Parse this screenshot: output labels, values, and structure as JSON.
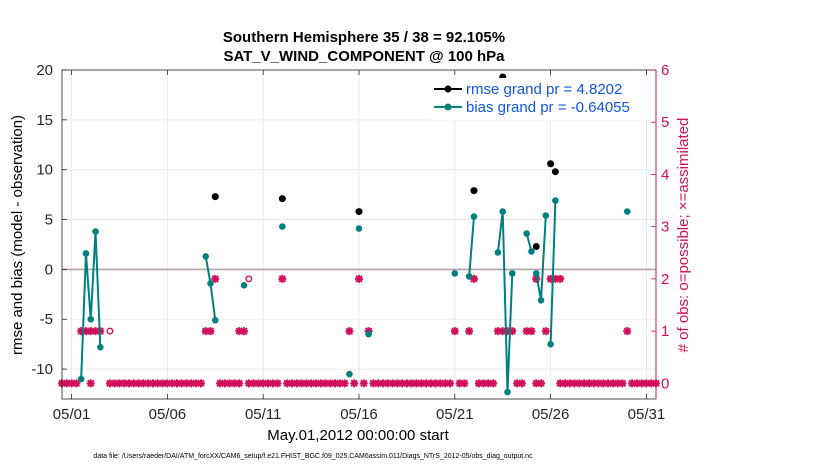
{
  "chart_data": {
    "type": "scatter",
    "title_line1": "Southern Hemisphere 35 / 38 = 92.105%",
    "title_line2": "SAT_V_WIND_COMPONENT @ 100 hPa",
    "xlabel": "May.01,2012 00:00:00 start",
    "ylabel": "rmse and bias (model - observation)",
    "ylabel_right": "# of obs: o=possible; ×=assimilated",
    "xlim": [
      0.5,
      31.5
    ],
    "ylim": [
      -13,
      20
    ],
    "ylim_right": [
      -0.3,
      6
    ],
    "x_ticks": [
      1,
      6,
      11,
      16,
      21,
      26,
      31
    ],
    "x_tick_labels": [
      "05/01",
      "05/06",
      "05/11",
      "05/16",
      "05/21",
      "05/26",
      "05/31"
    ],
    "y_ticks": [
      20,
      15,
      10,
      5,
      0,
      -5,
      -10
    ],
    "y_tick_labels": [
      "20",
      "15",
      "10",
      "5",
      "0",
      "-5",
      "-10"
    ],
    "y_right_ticks": [
      6,
      5,
      4,
      3,
      2,
      1,
      0
    ],
    "y_right_tick_labels": [
      "6",
      "5",
      "4",
      "3",
      "2",
      "1",
      "0"
    ],
    "colors": {
      "rmse": "#000000",
      "bias": "#00807f",
      "obs": "#d0105a",
      "zero_line": "#b3a3a8",
      "grid": "#e6e6e6"
    },
    "legend": [
      {
        "name": "rmse grand pr = 4.8202",
        "color": "#000000"
      },
      {
        "name": "bias grand pr = -0.64055",
        "color": "#00807f"
      }
    ],
    "legend_position": "top-right",
    "series": [
      {
        "name": "rmse",
        "points": [
          [
            8.5,
            7.3
          ],
          [
            12.0,
            7.1
          ],
          [
            16.0,
            5.8
          ],
          [
            22.0,
            7.9
          ],
          [
            23.5,
            19.3
          ],
          [
            25.25,
            2.3
          ],
          [
            26.0,
            10.6
          ],
          [
            26.25,
            9.8
          ]
        ]
      },
      {
        "name": "bias",
        "segments": [
          [
            [
              1.5,
              -11.0
            ],
            [
              1.75,
              1.6
            ],
            [
              2.0,
              -5.0
            ],
            [
              2.25,
              3.8
            ],
            [
              2.5,
              -7.8
            ]
          ],
          [
            [
              8.0,
              1.3
            ],
            [
              8.25,
              -1.4
            ],
            [
              8.5,
              -5.1
            ]
          ],
          [
            [
              10.0,
              -1.6
            ]
          ],
          [
            [
              12.0,
              4.3
            ]
          ],
          [
            [
              16.0,
              4.1
            ]
          ],
          [
            [
              16.5,
              -6.5
            ]
          ],
          [
            [
              15.5,
              -10.5
            ]
          ],
          [
            [
              21.0,
              -0.4
            ]
          ],
          [
            [
              21.75,
              -0.7
            ],
            [
              22.0,
              5.3
            ]
          ],
          [
            [
              23.25,
              1.7
            ],
            [
              23.5,
              5.8
            ],
            [
              23.75,
              -12.3
            ],
            [
              24.0,
              -0.4
            ]
          ],
          [
            [
              24.75,
              3.6
            ],
            [
              25.0,
              1.8
            ]
          ],
          [
            [
              25.25,
              -0.4
            ],
            [
              25.5,
              -3.1
            ],
            [
              25.75,
              5.4
            ]
          ],
          [
            [
              26.0,
              -7.5
            ],
            [
              26.25,
              6.9
            ]
          ],
          [
            [
              30.0,
              5.8
            ]
          ]
        ]
      },
      {
        "name": "obs_assimilated",
        "points": [
          [
            0.5,
            0
          ],
          [
            0.75,
            0
          ],
          [
            1.0,
            0
          ],
          [
            1.25,
            0
          ],
          [
            1.5,
            1
          ],
          [
            1.75,
            1
          ],
          [
            2.0,
            1
          ],
          [
            2.25,
            1
          ],
          [
            2.5,
            1
          ],
          [
            2.0,
            0
          ],
          [
            3.0,
            0
          ],
          [
            3.25,
            0
          ],
          [
            3.5,
            0
          ],
          [
            3.75,
            0
          ],
          [
            4.0,
            0
          ],
          [
            4.25,
            0
          ],
          [
            4.5,
            0
          ],
          [
            4.75,
            0
          ],
          [
            5.0,
            0
          ],
          [
            5.25,
            0
          ],
          [
            5.5,
            0
          ],
          [
            5.75,
            0
          ],
          [
            6.0,
            0
          ],
          [
            6.25,
            0
          ],
          [
            6.5,
            0
          ],
          [
            6.75,
            0
          ],
          [
            7.0,
            0
          ],
          [
            7.25,
            0
          ],
          [
            7.5,
            0
          ],
          [
            7.75,
            0
          ],
          [
            8.0,
            1
          ],
          [
            8.25,
            1
          ],
          [
            8.5,
            2
          ],
          [
            8.75,
            0
          ],
          [
            9.0,
            0
          ],
          [
            9.25,
            0
          ],
          [
            9.5,
            0
          ],
          [
            9.75,
            0
          ],
          [
            9.75,
            1
          ],
          [
            10.0,
            1
          ],
          [
            10.25,
            0
          ],
          [
            10.5,
            0
          ],
          [
            10.75,
            0
          ],
          [
            11.0,
            0
          ],
          [
            11.25,
            0
          ],
          [
            11.5,
            0
          ],
          [
            11.75,
            0
          ],
          [
            12.0,
            2
          ],
          [
            12.25,
            0
          ],
          [
            12.5,
            0
          ],
          [
            12.75,
            0
          ],
          [
            13.0,
            0
          ],
          [
            13.25,
            0
          ],
          [
            13.5,
            0
          ],
          [
            13.75,
            0
          ],
          [
            14.0,
            0
          ],
          [
            14.25,
            0
          ],
          [
            14.5,
            0
          ],
          [
            14.75,
            0
          ],
          [
            15.0,
            0
          ],
          [
            15.25,
            0
          ],
          [
            15.5,
            1
          ],
          [
            15.75,
            0
          ],
          [
            16.0,
            2
          ],
          [
            16.25,
            0
          ],
          [
            16.5,
            1
          ],
          [
            16.75,
            0
          ],
          [
            17.0,
            0
          ],
          [
            17.25,
            0
          ],
          [
            17.5,
            0
          ],
          [
            17.75,
            0
          ],
          [
            18.0,
            0
          ],
          [
            18.25,
            0
          ],
          [
            18.5,
            0
          ],
          [
            18.75,
            0
          ],
          [
            19.0,
            0
          ],
          [
            19.25,
            0
          ],
          [
            19.5,
            0
          ],
          [
            19.75,
            0
          ],
          [
            20.0,
            0
          ],
          [
            20.25,
            0
          ],
          [
            20.5,
            0
          ],
          [
            20.75,
            0
          ],
          [
            21.0,
            1
          ],
          [
            21.25,
            0
          ],
          [
            21.5,
            0
          ],
          [
            21.75,
            1
          ],
          [
            22.0,
            2
          ],
          [
            22.25,
            0
          ],
          [
            22.5,
            0
          ],
          [
            22.75,
            0
          ],
          [
            23.0,
            0
          ],
          [
            23.25,
            1
          ],
          [
            23.5,
            1
          ],
          [
            23.75,
            1
          ],
          [
            24.0,
            1
          ],
          [
            24.25,
            0
          ],
          [
            24.5,
            0
          ],
          [
            24.75,
            1
          ],
          [
            25.0,
            1
          ],
          [
            25.25,
            0
          ],
          [
            25.5,
            0
          ],
          [
            25.75,
            1
          ],
          [
            26.0,
            2
          ],
          [
            26.25,
            2
          ],
          [
            26.5,
            0
          ],
          [
            26.75,
            0
          ],
          [
            27.0,
            0
          ],
          [
            27.25,
            0
          ],
          [
            27.5,
            0
          ],
          [
            27.75,
            0
          ],
          [
            28.0,
            0
          ],
          [
            28.25,
            0
          ],
          [
            28.5,
            0
          ],
          [
            28.75,
            0
          ],
          [
            29.0,
            0
          ],
          [
            29.25,
            0
          ],
          [
            29.5,
            0
          ],
          [
            29.75,
            0
          ],
          [
            30.0,
            1
          ],
          [
            30.25,
            0
          ],
          [
            30.5,
            0
          ],
          [
            30.75,
            0
          ],
          [
            31.0,
            0
          ],
          [
            31.25,
            0
          ],
          [
            31.5,
            0
          ],
          [
            25.25,
            2
          ],
          [
            26.5,
            2
          ]
        ]
      },
      {
        "name": "obs_possible",
        "points": [
          [
            3.0,
            1
          ],
          [
            10.25,
            2
          ]
        ]
      }
    ]
  },
  "footnote": "data file: /Users/raeder/DAI/ATM_forcXX/CAM6_setup/f.e21.FHIST_BGC.f09_025.CAM6assim.011/Diags_NTrS_2012-05/obs_diag_output.nc"
}
